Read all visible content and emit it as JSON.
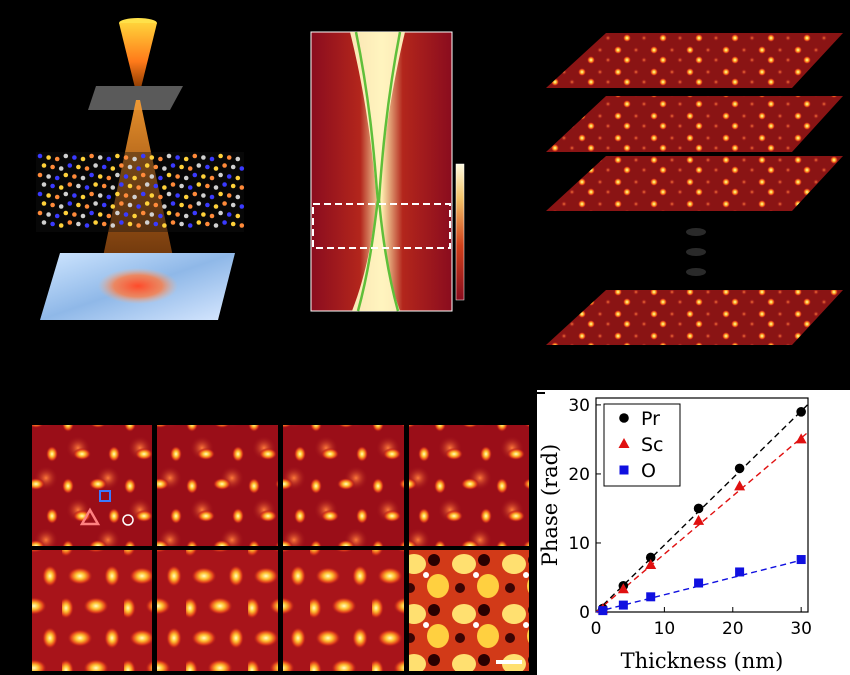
{
  "figure": {
    "background": "#000000",
    "panel_a": {
      "description_icons": [
        "electron-probe-cone",
        "aperture-plane",
        "crystal-lattice",
        "diffraction-detector"
      ]
    },
    "panel_b": {
      "colors": [
        "#8b0a1a",
        "#c43b1c",
        "#f6e6a6",
        "#5fbf3a",
        "#ffffff"
      ]
    },
    "panel_c": {
      "layer_count_shown": 4,
      "gap_dots": 3
    },
    "panel_d": {
      "rows": 2,
      "cols": 4,
      "markers": [
        "triangle-marker",
        "square-marker",
        "circle-marker"
      ]
    }
  },
  "chart_data": {
    "type": "scatter",
    "xlabel": "Thickness (nm)",
    "ylabel": "Phase (rad)",
    "xlim": [
      0,
      31
    ],
    "ylim": [
      0,
      31
    ],
    "xticks": [
      "0",
      "10",
      "20",
      "30"
    ],
    "yticks": [
      "0",
      "10",
      "20",
      "30"
    ],
    "legend_position": "top-left",
    "series": [
      {
        "name": "Pr",
        "marker": "circle",
        "color": "#000000",
        "x": [
          1,
          4,
          8,
          15,
          21,
          30
        ],
        "y": [
          0.5,
          3.8,
          7.9,
          15.0,
          20.8,
          29.0
        ]
      },
      {
        "name": "Sc",
        "marker": "triangle",
        "color": "#e01010",
        "x": [
          1,
          4,
          8,
          15,
          21,
          30
        ],
        "y": [
          0.4,
          3.3,
          6.8,
          13.2,
          18.2,
          25.0
        ]
      },
      {
        "name": "O",
        "marker": "square",
        "color": "#1010e0",
        "x": [
          1,
          4,
          8,
          15,
          21,
          30
        ],
        "y": [
          0.2,
          1.0,
          2.2,
          4.2,
          5.8,
          7.6
        ]
      }
    ],
    "fit_lines": [
      {
        "series": "Pr",
        "slope": 0.97
      },
      {
        "series": "Sc",
        "slope": 0.84
      },
      {
        "series": "O",
        "slope": 0.25
      }
    ]
  }
}
